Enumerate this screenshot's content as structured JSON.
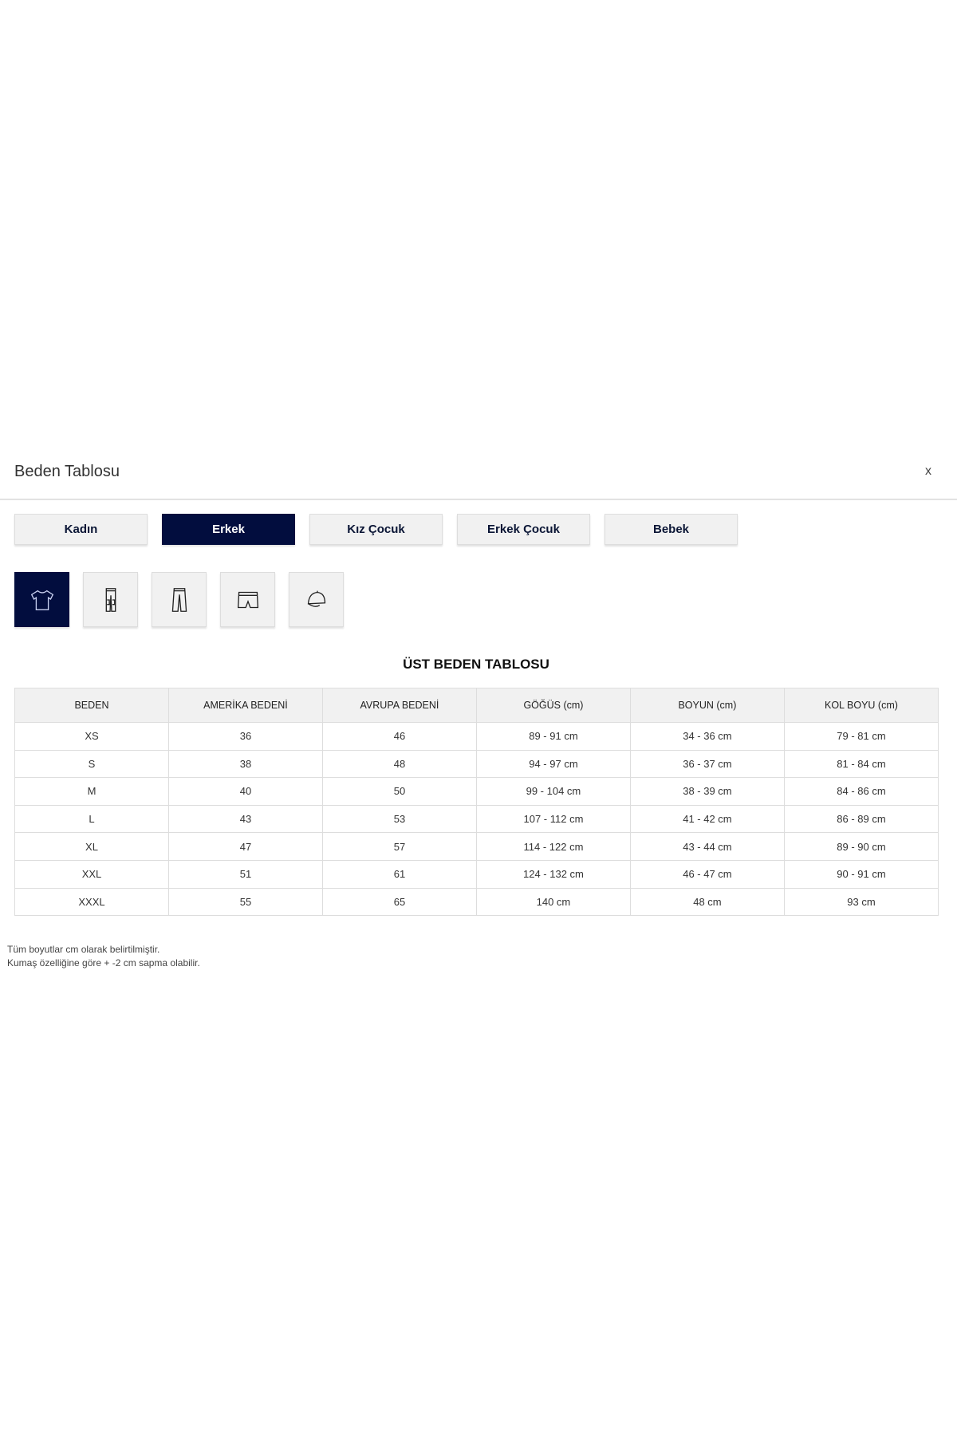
{
  "header": {
    "title": "Beden Tablosu",
    "close_label": "x"
  },
  "gender_tabs": [
    {
      "label": "Kadın"
    },
    {
      "label": "Erkek",
      "active": true
    },
    {
      "label": "Kız Çocuk"
    },
    {
      "label": "Erkek Çocuk"
    },
    {
      "label": "Bebek"
    }
  ],
  "category_tabs": [
    {
      "icon": "tshirt-icon",
      "active": true
    },
    {
      "icon": "cargo-pants-icon"
    },
    {
      "icon": "trousers-icon"
    },
    {
      "icon": "boxer-shorts-icon"
    },
    {
      "icon": "cap-icon"
    }
  ],
  "colors": {
    "accent": "#020d3e"
  },
  "table": {
    "title": "ÜST BEDEN TABLOSU",
    "headers": [
      "BEDEN",
      "AMERİKA BEDENİ",
      "AVRUPA BEDENİ",
      "GÖĞÜS (cm)",
      "BOYUN (cm)",
      "KOL BOYU (cm)"
    ],
    "rows": [
      [
        "XS",
        "36",
        "46",
        "89 - 91 cm",
        "34 - 36 cm",
        "79 - 81 cm"
      ],
      [
        "S",
        "38",
        "48",
        "94 - 97 cm",
        "36 - 37 cm",
        "81 - 84 cm"
      ],
      [
        "M",
        "40",
        "50",
        "99 - 104 cm",
        "38 - 39 cm",
        "84 - 86 cm"
      ],
      [
        "L",
        "43",
        "53",
        "107 - 112 cm",
        "41 - 42 cm",
        "86 - 89 cm"
      ],
      [
        "XL",
        "47",
        "57",
        "114 - 122 cm",
        "43 - 44 cm",
        "89 - 90 cm"
      ],
      [
        "XXL",
        "51",
        "61",
        "124 - 132 cm",
        "46 - 47 cm",
        "90 - 91 cm"
      ],
      [
        "XXXL",
        "55",
        "65",
        "140 cm",
        "48 cm",
        "93 cm"
      ]
    ]
  },
  "notes": [
    "Tüm boyutlar cm olarak belirtilmiştir.",
    "Kumaş özelliğine göre + -2 cm sapma olabilir."
  ]
}
